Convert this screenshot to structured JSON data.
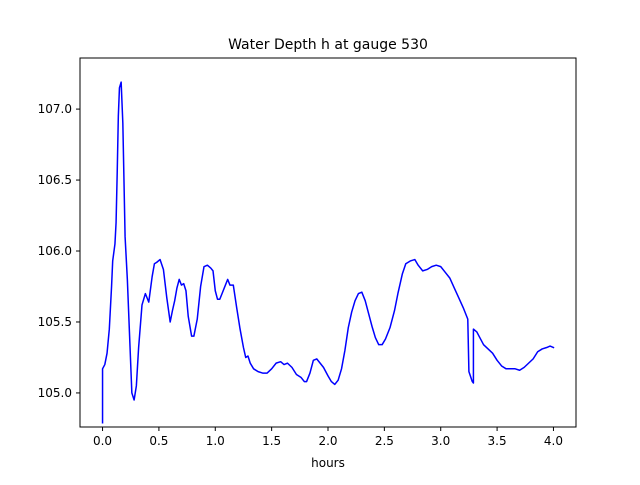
{
  "chart_data": {
    "type": "line",
    "title": "Water Depth h at gauge 530",
    "xlabel": "hours",
    "ylabel": "",
    "xlim": [
      -0.2,
      4.2
    ],
    "ylim": [
      104.76,
      107.36
    ],
    "grid": false,
    "x_ticks": [
      0.0,
      0.5,
      1.0,
      1.5,
      2.0,
      2.5,
      3.0,
      3.5,
      4.0
    ],
    "x_tick_labels": [
      "0.0",
      "0.5",
      "1.0",
      "1.5",
      "2.0",
      "2.5",
      "3.0",
      "3.5",
      "4.0"
    ],
    "y_ticks": [
      105.0,
      105.5,
      106.0,
      106.5,
      107.0
    ],
    "y_tick_labels": [
      "105.0",
      "105.5",
      "106.0",
      "106.5",
      "107.0"
    ],
    "colors": {
      "line": "#0000ff",
      "axes": "#000000",
      "background": "#ffffff"
    },
    "series": [
      {
        "color": "#0000ff",
        "points": [
          [
            0.0,
            104.79
          ],
          [
            0.0,
            105.17
          ],
          [
            0.02,
            105.2
          ],
          [
            0.04,
            105.28
          ],
          [
            0.06,
            105.45
          ],
          [
            0.08,
            105.75
          ],
          [
            0.09,
            105.93
          ],
          [
            0.11,
            106.05
          ],
          [
            0.12,
            106.2
          ],
          [
            0.13,
            106.55
          ],
          [
            0.14,
            106.95
          ],
          [
            0.15,
            107.15
          ],
          [
            0.165,
            107.19
          ],
          [
            0.18,
            106.9
          ],
          [
            0.2,
            106.1
          ],
          [
            0.22,
            105.8
          ],
          [
            0.24,
            105.4
          ],
          [
            0.26,
            105.0
          ],
          [
            0.28,
            104.95
          ],
          [
            0.3,
            105.05
          ],
          [
            0.32,
            105.32
          ],
          [
            0.35,
            105.62
          ],
          [
            0.38,
            105.7
          ],
          [
            0.41,
            105.64
          ],
          [
            0.44,
            105.82
          ],
          [
            0.46,
            105.91
          ],
          [
            0.48,
            105.92
          ],
          [
            0.51,
            105.94
          ],
          [
            0.54,
            105.87
          ],
          [
            0.57,
            105.67
          ],
          [
            0.6,
            105.5
          ],
          [
            0.62,
            105.58
          ],
          [
            0.64,
            105.65
          ],
          [
            0.66,
            105.74
          ],
          [
            0.68,
            105.8
          ],
          [
            0.7,
            105.76
          ],
          [
            0.72,
            105.77
          ],
          [
            0.74,
            105.72
          ],
          [
            0.76,
            105.54
          ],
          [
            0.79,
            105.4
          ],
          [
            0.81,
            105.4
          ],
          [
            0.84,
            105.52
          ],
          [
            0.87,
            105.75
          ],
          [
            0.9,
            105.89
          ],
          [
            0.93,
            105.9
          ],
          [
            0.96,
            105.88
          ],
          [
            0.98,
            105.86
          ],
          [
            1.0,
            105.72
          ],
          [
            1.02,
            105.66
          ],
          [
            1.04,
            105.66
          ],
          [
            1.06,
            105.7
          ],
          [
            1.09,
            105.76
          ],
          [
            1.11,
            105.8
          ],
          [
            1.13,
            105.76
          ],
          [
            1.16,
            105.76
          ],
          [
            1.19,
            105.6
          ],
          [
            1.22,
            105.45
          ],
          [
            1.25,
            105.32
          ],
          [
            1.27,
            105.25
          ],
          [
            1.29,
            105.26
          ],
          [
            1.31,
            105.21
          ],
          [
            1.34,
            105.17
          ],
          [
            1.38,
            105.15
          ],
          [
            1.42,
            105.14
          ],
          [
            1.46,
            105.14
          ],
          [
            1.5,
            105.17
          ],
          [
            1.54,
            105.21
          ],
          [
            1.58,
            105.22
          ],
          [
            1.61,
            105.2
          ],
          [
            1.64,
            105.21
          ],
          [
            1.68,
            105.18
          ],
          [
            1.72,
            105.13
          ],
          [
            1.76,
            105.11
          ],
          [
            1.79,
            105.08
          ],
          [
            1.81,
            105.08
          ],
          [
            1.84,
            105.14
          ],
          [
            1.87,
            105.23
          ],
          [
            1.9,
            105.24
          ],
          [
            1.93,
            105.21
          ],
          [
            1.96,
            105.18
          ],
          [
            2.0,
            105.12
          ],
          [
            2.03,
            105.08
          ],
          [
            2.06,
            105.06
          ],
          [
            2.09,
            105.09
          ],
          [
            2.12,
            105.17
          ],
          [
            2.15,
            105.3
          ],
          [
            2.18,
            105.46
          ],
          [
            2.21,
            105.57
          ],
          [
            2.24,
            105.65
          ],
          [
            2.27,
            105.7
          ],
          [
            2.3,
            105.71
          ],
          [
            2.33,
            105.65
          ],
          [
            2.36,
            105.56
          ],
          [
            2.39,
            105.47
          ],
          [
            2.42,
            105.39
          ],
          [
            2.45,
            105.34
          ],
          [
            2.48,
            105.34
          ],
          [
            2.51,
            105.38
          ],
          [
            2.55,
            105.46
          ],
          [
            2.59,
            105.58
          ],
          [
            2.62,
            105.7
          ],
          [
            2.66,
            105.84
          ],
          [
            2.69,
            105.91
          ],
          [
            2.73,
            105.93
          ],
          [
            2.77,
            105.94
          ],
          [
            2.8,
            105.9
          ],
          [
            2.84,
            105.86
          ],
          [
            2.88,
            105.87
          ],
          [
            2.92,
            105.89
          ],
          [
            2.96,
            105.9
          ],
          [
            3.0,
            105.89
          ],
          [
            3.04,
            105.85
          ],
          [
            3.08,
            105.81
          ],
          [
            3.12,
            105.74
          ],
          [
            3.16,
            105.67
          ],
          [
            3.2,
            105.6
          ],
          [
            3.24,
            105.52
          ],
          [
            3.25,
            105.15
          ],
          [
            3.28,
            105.08
          ],
          [
            3.29,
            105.07
          ],
          [
            3.29,
            105.45
          ],
          [
            3.32,
            105.43
          ],
          [
            3.34,
            105.4
          ],
          [
            3.36,
            105.37
          ],
          [
            3.38,
            105.34
          ],
          [
            3.42,
            105.31
          ],
          [
            3.46,
            105.28
          ],
          [
            3.5,
            105.23
          ],
          [
            3.54,
            105.19
          ],
          [
            3.58,
            105.17
          ],
          [
            3.62,
            105.17
          ],
          [
            3.66,
            105.17
          ],
          [
            3.7,
            105.16
          ],
          [
            3.74,
            105.18
          ],
          [
            3.78,
            105.21
          ],
          [
            3.82,
            105.24
          ],
          [
            3.86,
            105.29
          ],
          [
            3.9,
            105.31
          ],
          [
            3.94,
            105.32
          ],
          [
            3.97,
            105.33
          ],
          [
            4.0,
            105.32
          ]
        ]
      }
    ]
  }
}
